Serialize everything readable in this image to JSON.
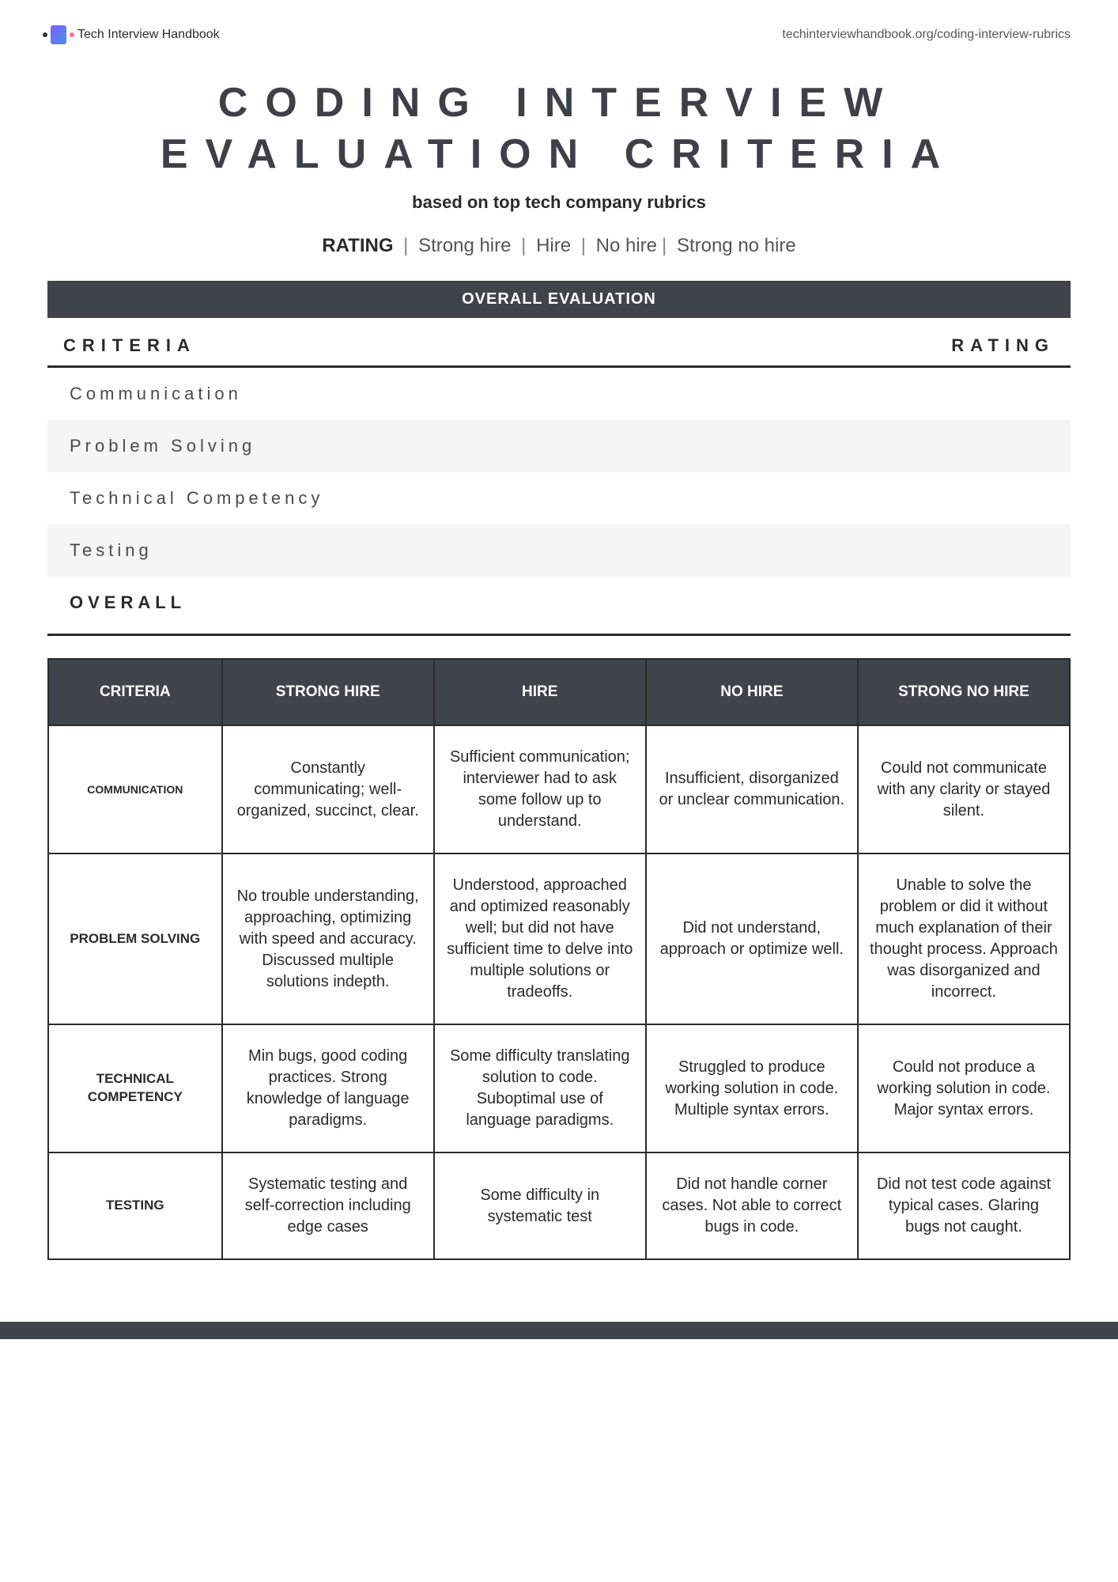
{
  "header": {
    "brand": "Tech Interview Handbook",
    "url": "techinterviewhandbook.org/coding-interview-rubrics"
  },
  "title_line1": "CODING INTERVIEW",
  "title_line2": "EVALUATION CRITERIA",
  "subtitle": "based on top tech company rubrics",
  "rating_bar": {
    "label": "RATING",
    "levels": [
      "Strong hire",
      "Hire",
      "No hire",
      "Strong no hire"
    ]
  },
  "banner": "OVERALL EVALUATION",
  "overall_table": {
    "header_left": "CRITERIA",
    "header_right": "RATING",
    "rows": [
      "Communication",
      "Problem Solving",
      "Technical Competency",
      "Testing"
    ],
    "overall_label": "OVERALL"
  },
  "rubric": {
    "columns": [
      "CRITERIA",
      "STRONG HIRE",
      "HIRE",
      "NO HIRE",
      "STRONG NO HIRE"
    ],
    "rows": [
      {
        "label": "COMMUNICATION",
        "cells": [
          "Constantly communicating; well-organized, succinct, clear.",
          "Sufficient communication; interviewer had to ask some follow up to understand.",
          "Insufficient, disorganized or unclear communication.",
          "Could not communicate with any clarity or stayed silent."
        ]
      },
      {
        "label": "PROBLEM SOLVING",
        "cells": [
          "No trouble understanding, approaching, optimizing with speed and accuracy. Discussed multiple solutions indepth.",
          "Understood, approached and optimized reasonably well; but did not have sufficient time to delve into multiple solutions or tradeoffs.",
          "Did not understand, approach or optimize well.",
          "Unable to solve the problem or did it without much explanation of their thought process. Approach was disorganized and incorrect."
        ]
      },
      {
        "label": "TECHNICAL COMPETENCY",
        "cells": [
          "Min bugs, good coding practices. Strong knowledge of language paradigms.",
          "Some difficulty translating solution to code. Suboptimal use of language paradigms.",
          "Struggled to produce working solution in code. Multiple syntax errors.",
          "Could not produce a working solution in code. Major syntax errors."
        ]
      },
      {
        "label": "TESTING",
        "cells": [
          "Systematic testing and self-correction including edge cases",
          "Some difficulty in systematic test",
          "Did not handle corner cases. Not able to correct bugs in code.",
          "Did not test code against typical cases. Glaring bugs not caught."
        ]
      }
    ]
  }
}
